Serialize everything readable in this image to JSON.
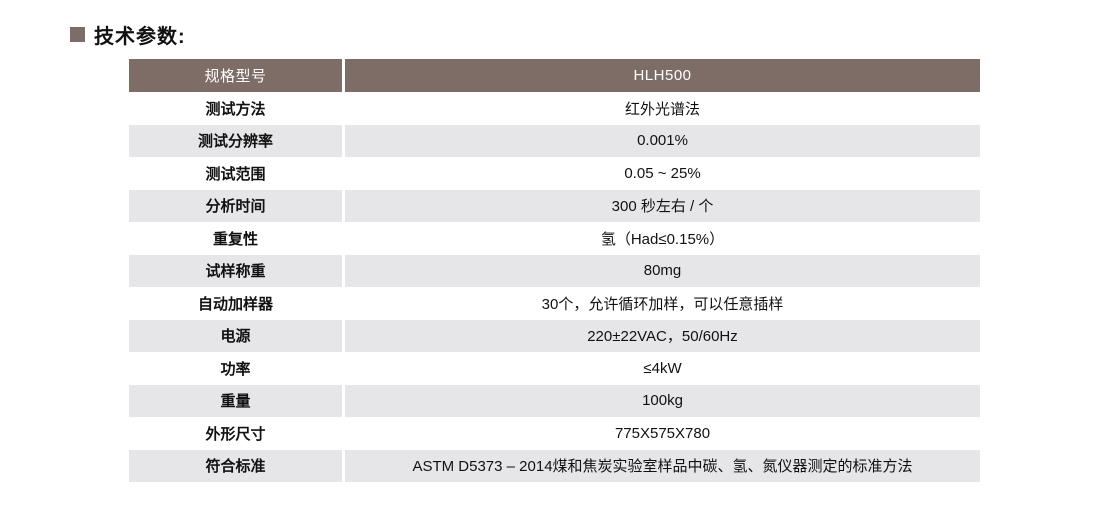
{
  "page": {
    "title": "技术参数:"
  },
  "table": {
    "header": {
      "label": "规格型号",
      "value": "HLH500"
    },
    "rows": [
      {
        "label": "测试方法",
        "value": "红外光谱法"
      },
      {
        "label": "测试分辨率",
        "value": "0.001%"
      },
      {
        "label": "测试范围",
        "value": "0.05 ~ 25%"
      },
      {
        "label": "分析时间",
        "value": "300 秒左右 / 个"
      },
      {
        "label": "重复性",
        "value": "氢（Had≤0.15%）"
      },
      {
        "label": "试样称重",
        "value": "80mg"
      },
      {
        "label": "自动加样器",
        "value": "30个，允许循环加样，可以任意插样"
      },
      {
        "label": "电源",
        "value": "220±22VAC，50/60Hz"
      },
      {
        "label": "功率",
        "value": "≤4kW"
      },
      {
        "label": "重量",
        "value": "100kg"
      },
      {
        "label": "外形尺寸",
        "value": "775X575X780"
      },
      {
        "label": "符合标准",
        "value": "ASTM D5373 – 2014煤和焦炭实验室样品中碳、氢、氮仪器测定的标准方法"
      }
    ],
    "colors": {
      "header_bg": "#7E6D67",
      "header_text": "#FFFFFF",
      "row_alt_bg": "#E6E6E8",
      "row_bg": "#FFFFFF",
      "brand": "#7E6D67",
      "text": "#111111"
    }
  }
}
